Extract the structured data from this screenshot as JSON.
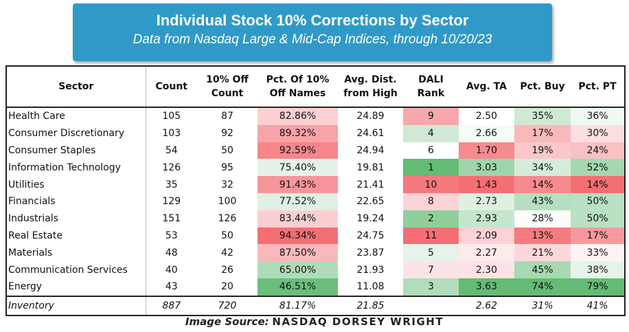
{
  "title": {
    "main": "Individual Stock 10% Corrections by Sector",
    "sub": "Data from Nasdaq Large & Mid-Cap Indices, through 10/20/23"
  },
  "headers": {
    "sector": "Sector",
    "count": "Count",
    "off_count_1": "10% Off",
    "off_count_2": "Count",
    "pct_off_1": "Pct. Of 10%",
    "pct_off_2": "Off Names",
    "avg_dist_1": "Avg. Dist.",
    "avg_dist_2": "from High",
    "dali_1": "DALI",
    "dali_2": "Rank",
    "avg_ta": "Avg. TA",
    "pct_buy": "Pct. Buy",
    "pct_pt": "Pct. PT"
  },
  "rows": [
    {
      "sector": "Health Care",
      "count": "105",
      "off_count": "87",
      "pct_off": "82.86%",
      "avg_dist": "24.89",
      "dali": "9",
      "avg_ta": "2.50",
      "pct_buy": "35%",
      "pct_pt": "36%"
    },
    {
      "sector": "Consumer Discretionary",
      "count": "103",
      "off_count": "92",
      "pct_off": "89.32%",
      "avg_dist": "24.61",
      "dali": "4",
      "avg_ta": "2.66",
      "pct_buy": "17%",
      "pct_pt": "30%"
    },
    {
      "sector": "Consumer Staples",
      "count": "54",
      "off_count": "50",
      "pct_off": "92.59%",
      "avg_dist": "24.94",
      "dali": "6",
      "avg_ta": "1.70",
      "pct_buy": "19%",
      "pct_pt": "24%"
    },
    {
      "sector": "Information Technology",
      "count": "126",
      "off_count": "95",
      "pct_off": "75.40%",
      "avg_dist": "19.81",
      "dali": "1",
      "avg_ta": "3.03",
      "pct_buy": "34%",
      "pct_pt": "52%"
    },
    {
      "sector": "Utilities",
      "count": "35",
      "off_count": "32",
      "pct_off": "91.43%",
      "avg_dist": "21.41",
      "dali": "10",
      "avg_ta": "1.43",
      "pct_buy": "14%",
      "pct_pt": "14%"
    },
    {
      "sector": "Financials",
      "count": "129",
      "off_count": "100",
      "pct_off": "77.52%",
      "avg_dist": "22.65",
      "dali": "8",
      "avg_ta": "2.73",
      "pct_buy": "43%",
      "pct_pt": "50%"
    },
    {
      "sector": "Industrials",
      "count": "151",
      "off_count": "126",
      "pct_off": "83.44%",
      "avg_dist": "19.24",
      "dali": "2",
      "avg_ta": "2.93",
      "pct_buy": "28%",
      "pct_pt": "50%"
    },
    {
      "sector": "Real Estate",
      "count": "53",
      "off_count": "50",
      "pct_off": "94.34%",
      "avg_dist": "24.75",
      "dali": "11",
      "avg_ta": "2.09",
      "pct_buy": "13%",
      "pct_pt": "17%"
    },
    {
      "sector": "Materials",
      "count": "48",
      "off_count": "42",
      "pct_off": "87.50%",
      "avg_dist": "23.87",
      "dali": "5",
      "avg_ta": "2.27",
      "pct_buy": "21%",
      "pct_pt": "33%"
    },
    {
      "sector": "Communication Services",
      "count": "40",
      "off_count": "26",
      "pct_off": "65.00%",
      "avg_dist": "21.93",
      "dali": "7",
      "avg_ta": "2.30",
      "pct_buy": "45%",
      "pct_pt": "38%"
    },
    {
      "sector": "Energy",
      "count": "43",
      "off_count": "20",
      "pct_off": "46.51%",
      "avg_dist": "11.08",
      "dali": "3",
      "avg_ta": "3.63",
      "pct_buy": "74%",
      "pct_pt": "79%"
    }
  ],
  "total": {
    "sector": "Inventory",
    "count": "887",
    "off_count": "720",
    "pct_off": "81.17%",
    "avg_dist": "21.85",
    "dali": "",
    "avg_ta": "2.62",
    "pct_buy": "31%",
    "pct_pt": "41%"
  },
  "colors": {
    "title_bg": "#2f9ac8",
    "pct_off": [
      "#fbd0d3",
      "#f8a3a7",
      "#f5868a",
      "#e5f2e7",
      "#f7959a",
      "#e0f0e3",
      "#fbcfd2",
      "#f36f74",
      "#f9b8bb",
      "#afdcb8",
      "#6abe7a"
    ],
    "dali": [
      "#f8a8ac",
      "#cfe9d4",
      "#ffffff",
      "#63bb74",
      "#f5787d",
      "#fbd3d6",
      "#8fcf9c",
      "#f36f74",
      "#e7f3ea",
      "#fce4e6",
      "#b2ddbc"
    ],
    "avg_ta": [
      "#ffffff",
      "#f5fbf6",
      "#f58a8f",
      "#9fd5aa",
      "#f36f74",
      "#dff0e3",
      "#c5e6cc",
      "#fbd2d5",
      "#fdeaeb",
      "#fde3e5",
      "#63bb74"
    ],
    "pct_buy": [
      "#cfe9d4",
      "#f9b9bc",
      "#fbc7ca",
      "#d6ecda",
      "#f58a8f",
      "#b6dfbf",
      "#fbfdfb",
      "#f47b80",
      "#fcd7d9",
      "#a8d9b3",
      "#63bb74"
    ],
    "pct_pt": [
      "#f0f8f2",
      "#fcdfe1",
      "#fac0c3",
      "#a5d7b0",
      "#f36f74",
      "#b9e0c2",
      "#b9e0c2",
      "#f7999e",
      "#fef3f4",
      "#e7f3ea",
      "#63bb74"
    ]
  },
  "source": {
    "label": "Image Source:",
    "brand": "NASDAQ DORSEY WRIGHT"
  }
}
